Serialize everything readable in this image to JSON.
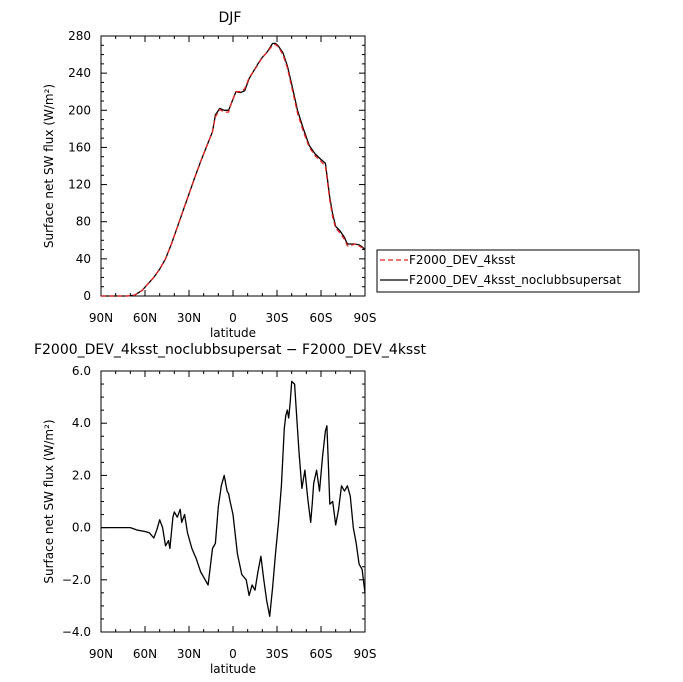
{
  "chart_data": [
    {
      "type": "line",
      "title": "DJF",
      "xlabel": "latitude",
      "ylabel": "Surface net SW flux (W/m²)",
      "xlim": [
        90,
        -90
      ],
      "x_ticks": [
        90,
        60,
        30,
        0,
        -30,
        -60,
        -90
      ],
      "x_tick_labels": [
        "90N",
        "60N",
        "30N",
        "0",
        "30S",
        "60S",
        "90S"
      ],
      "ylim": [
        0,
        280
      ],
      "y_ticks": [
        0,
        40,
        80,
        120,
        160,
        200,
        240,
        280
      ],
      "y_tick_labels": [
        "0",
        "40",
        "80",
        "120",
        "160",
        "200",
        "240",
        "280"
      ],
      "legend": [
        "F2000_DEV_4ksst",
        "F2000_DEV_4ksst_noclubbsupersat"
      ],
      "legend_placement": "right, outside",
      "series": [
        {
          "name": "F2000_DEV_4ksst",
          "color": "#e8231f",
          "dash": "dashed",
          "x": [
            90,
            80,
            72,
            67,
            62,
            58,
            54,
            50,
            46,
            42,
            38,
            34,
            30,
            26,
            22,
            18,
            14,
            12,
            9,
            6,
            3,
            1,
            -2,
            -5,
            -8,
            -11,
            -14,
            -17,
            -20,
            -23,
            -25,
            -27,
            -29,
            -31,
            -34,
            -37,
            -40,
            -44,
            -48,
            -52,
            -56,
            -60,
            -63,
            -66,
            -68,
            -70,
            -73,
            -76,
            -78,
            -80,
            -83,
            -86,
            -88,
            -90
          ],
          "y": [
            0,
            0,
            0,
            1,
            6,
            13,
            20,
            29,
            40,
            56,
            74,
            92,
            110,
            128,
            145,
            161,
            177,
            193,
            201,
            198,
            198,
            208,
            220,
            220,
            223,
            235,
            242,
            249,
            257,
            262,
            266,
            270,
            271,
            268,
            260,
            246,
            225,
            197,
            177,
            160,
            151,
            145,
            140,
            103,
            85,
            73,
            68,
            61,
            54,
            54,
            56,
            54,
            52,
            49
          ]
        },
        {
          "name": "F2000_DEV_4ksst_noclubbsupersat",
          "color": "#000000",
          "dash": "solid",
          "x": [
            90,
            80,
            72,
            67,
            62,
            58,
            54,
            50,
            46,
            42,
            38,
            34,
            30,
            26,
            22,
            18,
            14,
            12,
            9,
            6,
            3,
            1,
            -2,
            -5,
            -8,
            -11,
            -14,
            -17,
            -20,
            -23,
            -25,
            -27,
            -29,
            -31,
            -34,
            -37,
            -40,
            -44,
            -48,
            -52,
            -56,
            -60,
            -63,
            -66,
            -68,
            -70,
            -73,
            -76,
            -78,
            -80,
            -83,
            -86,
            -88,
            -90
          ],
          "y": [
            0,
            0,
            0,
            1,
            6,
            13,
            20,
            29,
            40,
            56,
            74,
            92,
            110,
            128,
            145,
            161,
            177,
            195,
            202,
            200,
            200,
            208,
            220,
            219,
            221,
            234,
            242,
            250,
            257,
            262,
            267,
            272,
            272,
            269,
            262,
            248,
            228,
            200,
            180,
            162,
            153,
            147,
            143,
            106,
            88,
            75,
            70,
            63,
            56,
            56,
            56,
            55,
            53,
            50
          ]
        }
      ]
    },
    {
      "type": "line",
      "title": "F2000_DEV_4ksst_noclubbsupersat − F2000_DEV_4ksst",
      "xlabel": "latitude",
      "ylabel": "Surface net SW flux (W/m²)",
      "xlim": [
        90,
        -90
      ],
      "x_ticks": [
        90,
        60,
        30,
        0,
        -30,
        -60,
        -90
      ],
      "x_tick_labels": [
        "90N",
        "60N",
        "30N",
        "0",
        "30S",
        "60S",
        "90S"
      ],
      "ylim": [
        -4,
        6
      ],
      "y_ticks": [
        -4,
        -2,
        0,
        2,
        4,
        6
      ],
      "y_tick_labels": [
        "−4.0",
        "−2.0",
        "0.0",
        "2.0",
        "4.0",
        "6.0"
      ],
      "series": [
        {
          "color": "#000000",
          "x": [
            90,
            80,
            70,
            65,
            60,
            57,
            54,
            52,
            50,
            48,
            46,
            44,
            43,
            41,
            40,
            38,
            36,
            35,
            33,
            31,
            28,
            25,
            22,
            20,
            17,
            14,
            12,
            10,
            8,
            6,
            4,
            3,
            2,
            0,
            -3,
            -6,
            -9,
            -11,
            -13,
            -15,
            -17,
            -19,
            -21,
            -23,
            -25,
            -27,
            -29,
            -31,
            -33,
            -35,
            -36,
            -37,
            -38,
            -39,
            -40,
            -42,
            -43,
            -45,
            -47,
            -49,
            -51,
            -53,
            -54,
            -55,
            -57,
            -59,
            -61,
            -63,
            -64,
            -65,
            -66,
            -68,
            -70,
            -72,
            -74,
            -76,
            -78,
            -80,
            -82,
            -84,
            -86,
            -88,
            -90
          ],
          "y": [
            0,
            0,
            0,
            -0.1,
            -0.15,
            -0.2,
            -0.4,
            -0.1,
            0.3,
            0,
            -0.7,
            -0.5,
            -0.8,
            0.4,
            0.6,
            0.4,
            0.7,
            0.2,
            0.5,
            -0.2,
            -0.8,
            -1.2,
            -1.7,
            -1.9,
            -2.2,
            -0.8,
            -0.6,
            0.8,
            1.6,
            2.0,
            1.4,
            1.3,
            1.0,
            0.5,
            -1.0,
            -1.8,
            -2.0,
            -2.6,
            -2.2,
            -2.4,
            -1.7,
            -1.1,
            -2.0,
            -2.8,
            -3.4,
            -2.3,
            -1.0,
            0.2,
            1.6,
            3.8,
            4.3,
            4.5,
            4.2,
            4.8,
            5.6,
            5.5,
            4.6,
            2.9,
            1.5,
            2.2,
            1.1,
            0.2,
            0.9,
            1.7,
            2.2,
            1.4,
            2.7,
            3.7,
            3.9,
            2.5,
            0.9,
            1.0,
            0.1,
            0.7,
            1.6,
            1.4,
            1.6,
            1.2,
            0.0,
            -0.6,
            -1.4,
            -1.6,
            -2.5
          ]
        }
      ]
    }
  ]
}
